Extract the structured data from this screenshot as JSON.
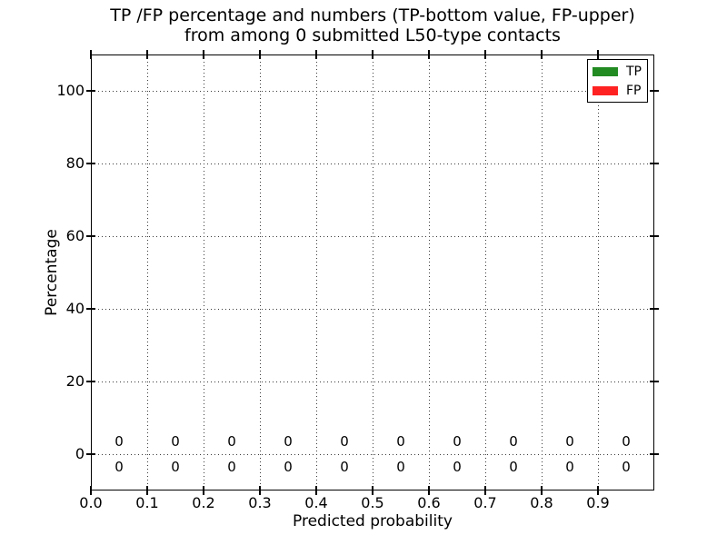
{
  "figure": {
    "title_line1": "TP /FP percentage and numbers (TP-bottom value, FP-upper)",
    "title_line2": "from among 0 submitted L50-type contacts"
  },
  "chart_data": {
    "type": "bar",
    "title": "TP /FP percentage and numbers (TP-bottom value, FP-upper) from among 0 submitted L50-type contacts",
    "xlabel": "Predicted probability",
    "ylabel": "Percentage",
    "xlim": [
      0.0,
      1.0
    ],
    "ylim": [
      -10,
      110
    ],
    "grid": true,
    "grid_style": "dotted",
    "legend_position": "upper right",
    "xtick_values": [
      0.0,
      0.1,
      0.2,
      0.3,
      0.4,
      0.5,
      0.6,
      0.7,
      0.8,
      0.9
    ],
    "xtick_labels": [
      "0.0",
      "0.1",
      "0.2",
      "0.3",
      "0.4",
      "0.5",
      "0.6",
      "0.7",
      "0.8",
      "0.9"
    ],
    "ytick_values": [
      0,
      20,
      40,
      60,
      80,
      100
    ],
    "categories": [
      0.05,
      0.15,
      0.25,
      0.35,
      0.45,
      0.55,
      0.65,
      0.75,
      0.85,
      0.95
    ],
    "series": [
      {
        "name": "TP",
        "color": "#228B22",
        "values": [
          0,
          0,
          0,
          0,
          0,
          0,
          0,
          0,
          0,
          0
        ]
      },
      {
        "name": "FP",
        "color": "#FF2222",
        "values": [
          0,
          0,
          0,
          0,
          0,
          0,
          0,
          0,
          0,
          0
        ]
      }
    ],
    "annotations": {
      "upper_fp_counts": [
        "0",
        "0",
        "0",
        "0",
        "0",
        "0",
        "0",
        "0",
        "0",
        "0"
      ],
      "lower_tp_counts": [
        "0",
        "0",
        "0",
        "0",
        "0",
        "0",
        "0",
        "0",
        "0",
        "0"
      ]
    },
    "colors": {
      "tp_green": "#228B22",
      "fp_red": "#FF2222",
      "text": "#000000",
      "background": "#ffffff",
      "spine": "#000000"
    }
  }
}
